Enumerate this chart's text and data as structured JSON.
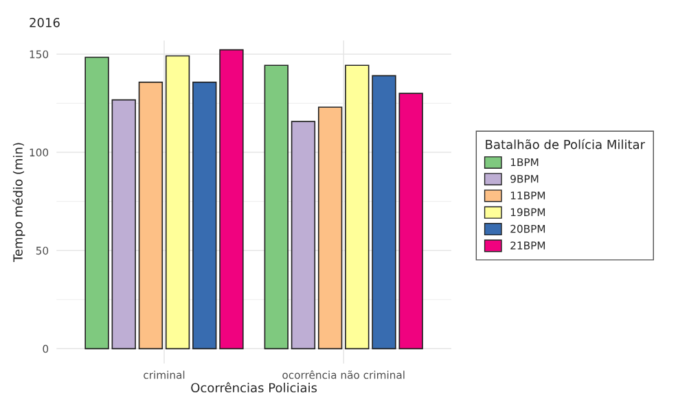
{
  "chart_data": {
    "type": "bar",
    "title": "2016",
    "xlabel": "Ocorrências Policiais",
    "ylabel": "Tempo médio (min)",
    "legend_title": "Batalhão de Polícia Militar",
    "categories": [
      "criminal",
      "ocorrência não criminal"
    ],
    "series": [
      {
        "name": "1BPM",
        "color": "#7fc97f",
        "values": [
          148.4,
          144.3
        ]
      },
      {
        "name": "9BPM",
        "color": "#beaed4",
        "values": [
          126.7,
          115.7
        ]
      },
      {
        "name": "11BPM",
        "color": "#fdc086",
        "values": [
          135.7,
          123.0
        ]
      },
      {
        "name": "19BPM",
        "color": "#ffff99",
        "values": [
          149.1,
          144.3
        ]
      },
      {
        "name": "20BPM",
        "color": "#386cb0",
        "values": [
          135.7,
          139.0
        ]
      },
      {
        "name": "21BPM",
        "color": "#f0027f",
        "values": [
          152.2,
          130.0
        ]
      }
    ],
    "ylim": [
      -7.6,
      157
    ],
    "yticks": [
      0,
      50,
      100,
      150
    ],
    "grid": true,
    "legend": "right"
  }
}
